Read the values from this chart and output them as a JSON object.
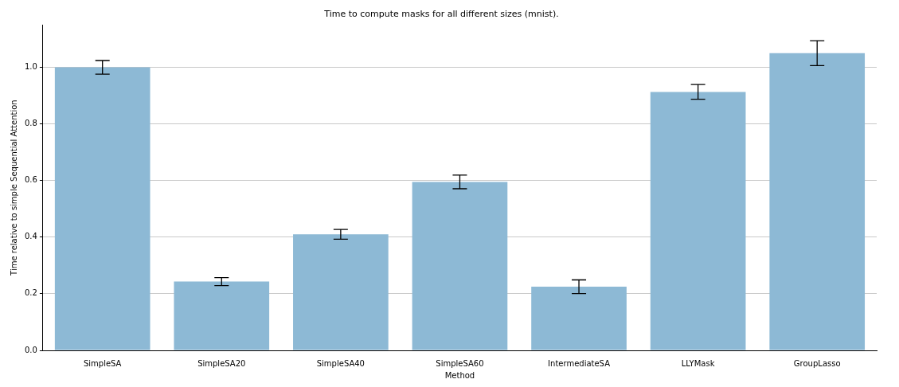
{
  "chart_data": {
    "type": "bar",
    "title": "Time to compute masks for all different sizes (mnist).",
    "xlabel": "Method",
    "ylabel": "Time relative to simple Sequential Attention",
    "categories": [
      "SimpleSA",
      "SimpleSA20",
      "SimpleSA40",
      "SimpleSA60",
      "IntermediateSA",
      "LLYMask",
      "GroupLasso"
    ],
    "values": [
      1.0,
      0.243,
      0.41,
      0.595,
      0.225,
      0.913,
      1.05
    ],
    "errors": [
      0.024,
      0.014,
      0.017,
      0.024,
      0.024,
      0.026,
      0.044
    ],
    "color": "#8db9d5",
    "ylim": [
      0,
      1.15
    ],
    "yticks": [
      {
        "value": 0,
        "label": "0.0"
      },
      0.2,
      0.4,
      0.6,
      0.8,
      {
        "value": 1,
        "label": "1.0"
      }
    ],
    "grid": "y",
    "legend": false
  }
}
